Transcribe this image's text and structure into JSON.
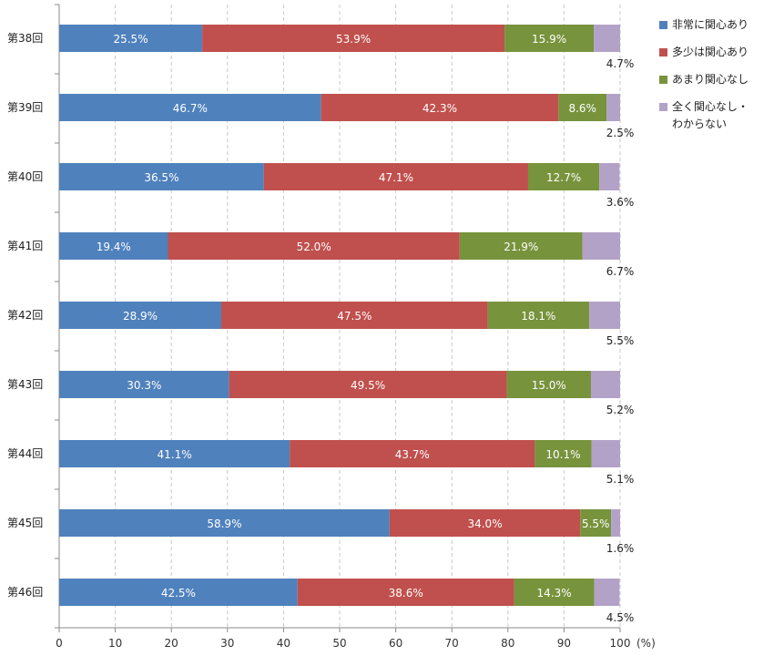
{
  "chart_data": {
    "type": "bar",
    "orientation": "horizontal",
    "stacked": true,
    "categories": [
      "第38回",
      "第39回",
      "第40回",
      "第41回",
      "第42回",
      "第43回",
      "第44回",
      "第45回",
      "第46回"
    ],
    "series": [
      {
        "name": "非常に関心あり",
        "color": "#4f81bd",
        "values": [
          25.5,
          46.7,
          36.5,
          19.4,
          28.9,
          30.3,
          41.1,
          58.9,
          42.5
        ],
        "labels": [
          "25.5%",
          "46.7%",
          "36.5%",
          "19.4%",
          "28.9%",
          "30.3%",
          "41.1%",
          "58.9%",
          "42.5%"
        ]
      },
      {
        "name": "多少は関心あり",
        "color": "#c0504d",
        "values": [
          53.9,
          42.3,
          47.1,
          52.0,
          47.5,
          49.5,
          43.7,
          34.0,
          38.6
        ],
        "labels": [
          "53.9%",
          "42.3%",
          "47.1%",
          "52.0%",
          "47.5%",
          "49.5%",
          "43.7%",
          "34.0%",
          "38.6%"
        ]
      },
      {
        "name": "あまり関心なし",
        "color": "#77933c",
        "values": [
          15.9,
          8.6,
          12.7,
          21.9,
          18.1,
          15.0,
          10.1,
          5.5,
          14.3
        ],
        "labels": [
          "15.9%",
          "8.6%",
          "12.7%",
          "21.9%",
          "18.1%",
          "15.0%",
          "10.1%",
          "5.5%",
          "14.3%"
        ]
      },
      {
        "name": "全く関心なし・\nわからない",
        "color": "#b3a2c7",
        "values": [
          4.7,
          2.5,
          3.6,
          6.7,
          5.5,
          5.2,
          5.1,
          1.6,
          4.5
        ],
        "labels": [
          "4.7%",
          "2.5%",
          "3.6%",
          "6.7%",
          "5.5%",
          "5.2%",
          "5.1%",
          "1.6%",
          "4.5%"
        ]
      }
    ],
    "xlim": [
      0,
      100
    ],
    "xticks": [
      "0",
      "10",
      "20",
      "30",
      "40",
      "50",
      "60",
      "70",
      "80",
      "90",
      "100"
    ],
    "unit_label": "(%)",
    "grid": "vertical dashed",
    "legend_position": "right"
  }
}
